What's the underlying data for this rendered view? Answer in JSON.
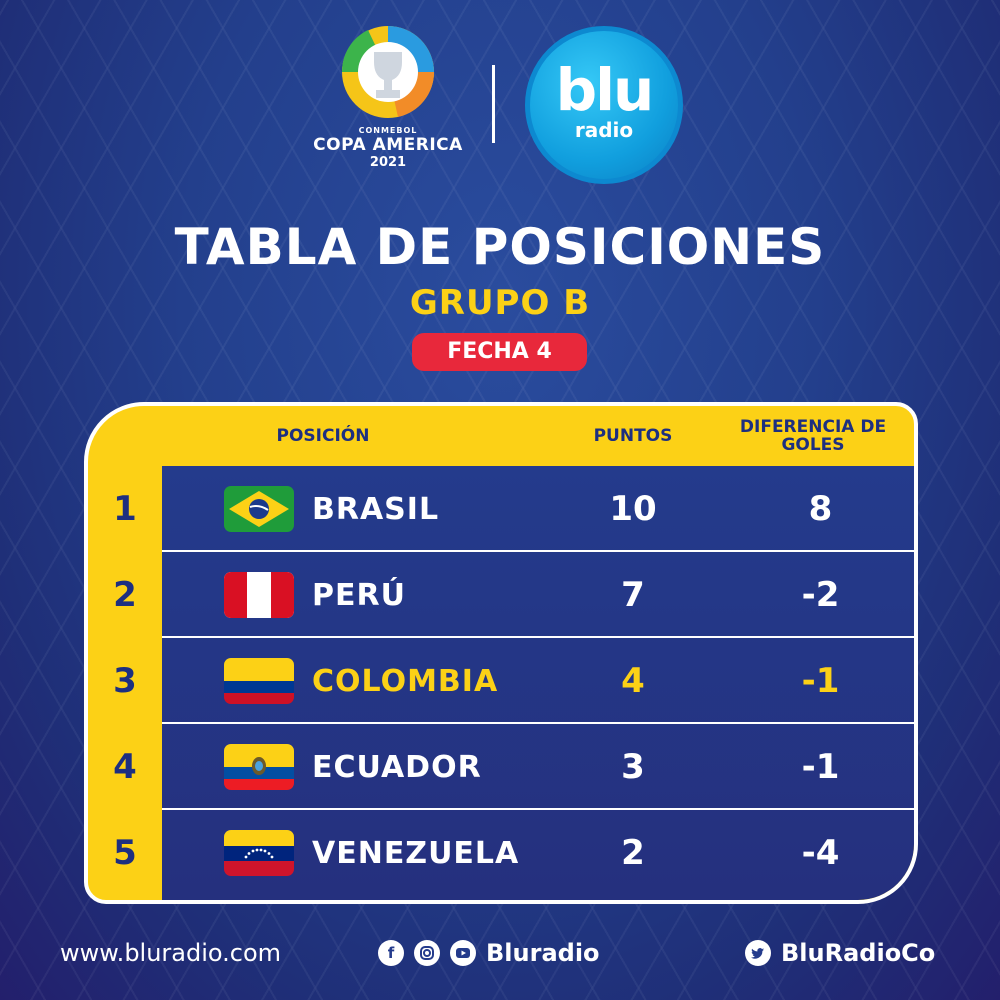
{
  "header": {
    "copa_small": "CONMEBOL",
    "copa_name": "COPA AMERICA",
    "copa_year": "2021",
    "blu_word": "blu",
    "blu_sub": "radio"
  },
  "title": "TABLA DE POSICIONES",
  "group": "GRUPO B",
  "fecha": "FECHA 4",
  "table": {
    "col_position": "POSICIÓN",
    "col_points": "PUNTOS",
    "col_diff": "DIFERENCIA DE GOLES",
    "rows": [
      {
        "rank": "1",
        "team": "BRASIL",
        "points": "10",
        "diff": "8",
        "flag": "brazil-flag"
      },
      {
        "rank": "2",
        "team": "PERÚ",
        "points": "7",
        "diff": "-2",
        "flag": "peru-flag"
      },
      {
        "rank": "3",
        "team": "COLOMBIA",
        "points": "4",
        "diff": "-1",
        "flag": "colombia-flag"
      },
      {
        "rank": "4",
        "team": "ECUADOR",
        "points": "3",
        "diff": "-1",
        "flag": "ecuador-flag"
      },
      {
        "rank": "5",
        "team": "VENEZUELA",
        "points": "2",
        "diff": "-4",
        "flag": "venezuela-flag"
      }
    ]
  },
  "footer": {
    "website": "www.bluradio.com",
    "social_handle": "Bluradio",
    "twitter_handle": "BluRadioCo"
  },
  "colors": {
    "accent_yellow": "#fcd116",
    "pill_red": "#e8283b",
    "blue_bg": "#243b8c"
  }
}
